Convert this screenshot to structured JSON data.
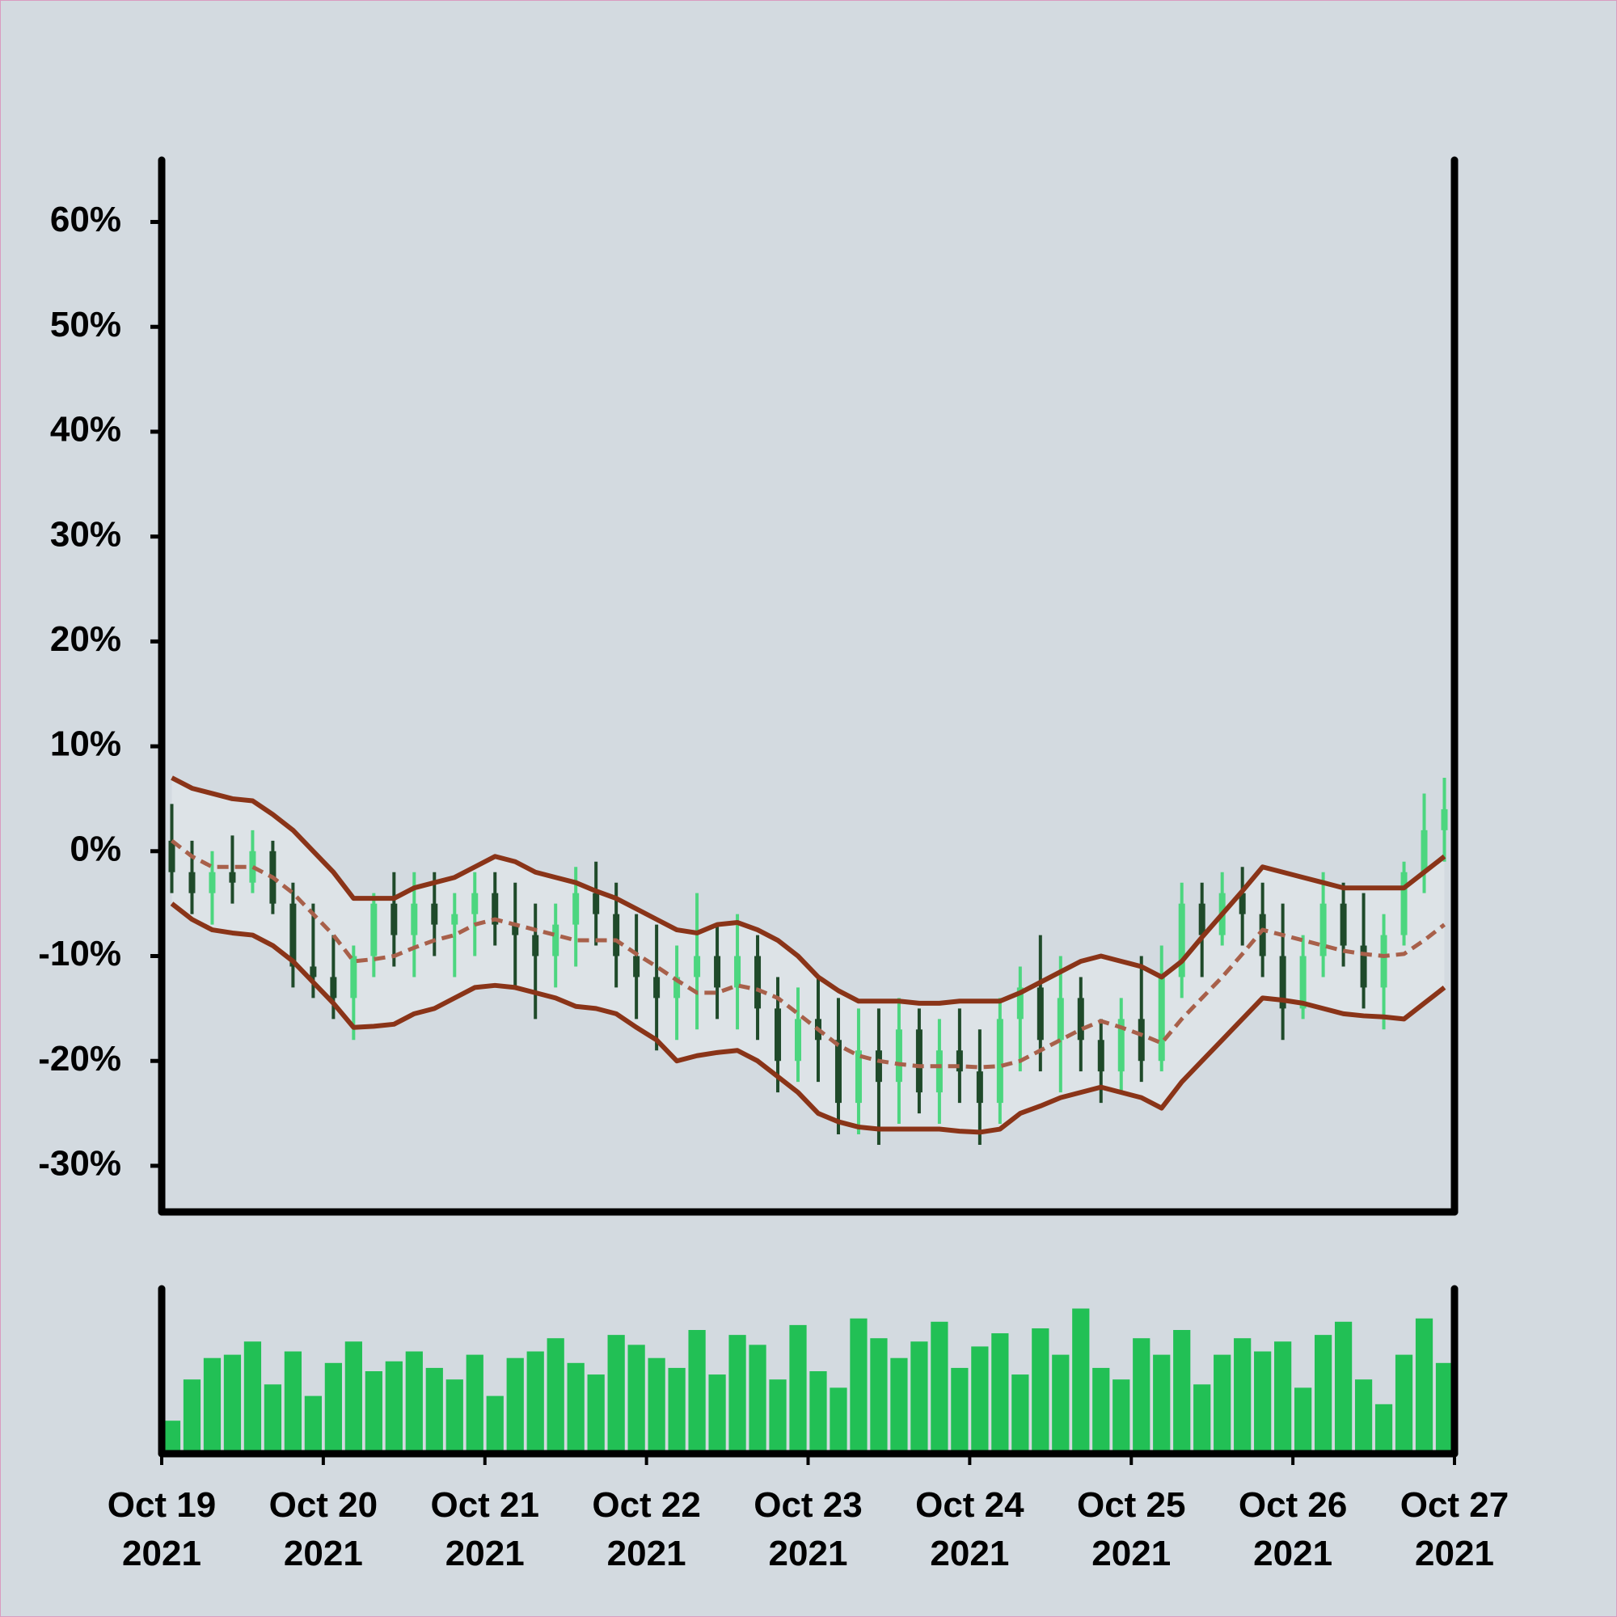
{
  "chart_data": [
    {
      "type": "ohlc",
      "x": [
        1.5,
        4.5,
        7.5,
        10.5,
        13.5,
        16.5,
        19.5,
        22.5,
        25.5,
        28.5,
        31.5,
        34.5,
        37.5,
        40.5,
        43.5,
        46.5,
        49.5,
        52.5,
        55.5,
        58.5,
        61.5,
        64.5,
        67.5,
        70.5,
        73.5,
        76.5,
        79.5,
        82.5,
        85.5,
        88.5,
        91.5,
        94.5,
        97.5,
        100.5,
        103.5,
        106.5,
        109.5,
        112.5,
        115.5,
        118.5,
        121.5,
        124.5,
        127.5,
        130.5,
        133.5,
        136.5,
        139.5,
        142.5,
        145.5,
        148.5,
        151.5,
        154.5,
        157.5,
        160.5,
        163.5,
        166.5,
        169.5,
        172.5,
        175.5,
        178.5,
        181.5,
        184.5,
        187.5,
        190.5
      ],
      "open": [
        1,
        -2,
        -4,
        -2,
        -3,
        0,
        -5,
        -11,
        -12,
        -14,
        -10,
        -5,
        -8,
        -5,
        -7,
        -6,
        -4,
        -7,
        -8,
        -10,
        -7,
        -4,
        -6,
        -10,
        -12,
        -14,
        -12,
        -10,
        -13,
        -10,
        -15,
        -20,
        -16,
        -18,
        -24,
        -19,
        -22,
        -17,
        -23,
        -19,
        -21,
        -24,
        -16,
        -13,
        -18,
        -14,
        -18,
        -21,
        -16,
        -20,
        -12,
        -5,
        -8,
        -4,
        -6,
        -10,
        -15,
        -10,
        -5,
        -9,
        -13,
        -8,
        -2,
        2
      ],
      "high": [
        4.5,
        1,
        0,
        1.5,
        2,
        1,
        -3,
        -5,
        -8,
        -9,
        -4,
        -2,
        -2,
        -2,
        -4,
        -2,
        -2,
        -3,
        -5,
        -5,
        -1.5,
        -1,
        -3,
        -6,
        -7,
        -9,
        -4,
        -7,
        -6,
        -8,
        -12,
        -13,
        -12,
        -14,
        -15,
        -15,
        -14,
        -15,
        -16,
        -15,
        -17,
        -14,
        -11,
        -8,
        -10,
        -12,
        -16,
        -14,
        -10,
        -9,
        -3,
        -3,
        -2,
        -1.5,
        -3,
        -5,
        -8,
        -2,
        -3,
        -4,
        -6,
        -1,
        5.5,
        7
      ],
      "low": [
        -4,
        -6,
        -7,
        -5,
        -4,
        -6,
        -13,
        -14,
        -16,
        -18,
        -12,
        -11,
        -12,
        -10,
        -12,
        -10,
        -9,
        -13,
        -16,
        -13,
        -11,
        -9,
        -13,
        -16,
        -19,
        -18,
        -17,
        -16,
        -17,
        -18,
        -23,
        -22,
        -22,
        -27,
        -27,
        -28,
        -26,
        -25,
        -26,
        -24,
        -28,
        -26,
        -21,
        -21,
        -23,
        -21,
        -24,
        -23,
        -22,
        -21,
        -14,
        -12,
        -9,
        -9,
        -12,
        -18,
        -16,
        -12,
        -11,
        -15,
        -17,
        -9,
        -4,
        -1
      ],
      "close": [
        -2,
        -4,
        -2,
        -3,
        0,
        -5,
        -11,
        -12,
        -14,
        -10,
        -5,
        -8,
        -5,
        -7,
        -6,
        -4,
        -7,
        -8,
        -10,
        -7,
        -4,
        -6,
        -10,
        -12,
        -14,
        -12,
        -10,
        -13,
        -10,
        -15,
        -20,
        -16,
        -18,
        -24,
        -19,
        -22,
        -17,
        -23,
        -19,
        -21,
        -24,
        -16,
        -13,
        -18,
        -14,
        -18,
        -21,
        -16,
        -20,
        -12,
        -5,
        -8,
        -4,
        -6,
        -10,
        -15,
        -10,
        -5,
        -9,
        -13,
        -8,
        -2,
        2,
        4
      ],
      "up_color": "#4cd67f",
      "down_color": "#1f4a2a",
      "bands": {
        "upper": [
          7,
          6,
          5.5,
          5,
          4.8,
          3.5,
          2,
          0,
          -2,
          -4.5,
          -4.5,
          -4.5,
          -3.5,
          -3,
          -2.5,
          -1.5,
          -0.5,
          -1,
          -2,
          -2.5,
          -3,
          -3.8,
          -4.5,
          -5.5,
          -6.5,
          -7.5,
          -7.8,
          -7,
          -6.8,
          -7.5,
          -8.5,
          -10,
          -12,
          -13.3,
          -14.3,
          -14.3,
          -14.3,
          -14.5,
          -14.5,
          -14.3,
          -14.3,
          -14.3,
          -13.5,
          -12.5,
          -11.5,
          -10.5,
          -10,
          -10.5,
          -11,
          -12,
          -10.5,
          -8.2,
          -6,
          -3.8,
          -1.5,
          -2,
          -2.5,
          -3,
          -3.5,
          -3.5,
          -3.5,
          -3.5,
          -2,
          -0.5
        ],
        "middle": [
          1,
          -0.5,
          -1.5,
          -1.5,
          -1.5,
          -2.5,
          -4,
          -6,
          -8,
          -10.5,
          -10.3,
          -10,
          -9.2,
          -8.5,
          -8,
          -7,
          -6.5,
          -7,
          -7.5,
          -8,
          -8.5,
          -8.5,
          -8.5,
          -9.8,
          -11,
          -12.3,
          -13.5,
          -13.5,
          -12.8,
          -13.2,
          -14,
          -15.5,
          -17,
          -18.5,
          -19.5,
          -20,
          -20.3,
          -20.5,
          -20.5,
          -20.5,
          -20.6,
          -20.5,
          -20,
          -19,
          -18,
          -17,
          -16.2,
          -16.8,
          -17.5,
          -18.3,
          -16,
          -14,
          -12,
          -9.8,
          -7.5,
          -8,
          -8.5,
          -9,
          -9.5,
          -9.8,
          -10,
          -9.8,
          -8.5,
          -7
        ],
        "lower": [
          -5,
          -6.5,
          -7.5,
          -7.8,
          -8,
          -9,
          -10.5,
          -12.5,
          -14.5,
          -16.8,
          -16.7,
          -16.5,
          -15.5,
          -15,
          -14,
          -13,
          -12.8,
          -13,
          -13.5,
          -14,
          -14.8,
          -15,
          -15.5,
          -16.8,
          -18,
          -20,
          -19.5,
          -19.2,
          -19,
          -20,
          -21.5,
          -23,
          -25,
          -25.8,
          -26.3,
          -26.5,
          -26.5,
          -26.5,
          -26.5,
          -26.7,
          -26.8,
          -26.5,
          -25,
          -24.3,
          -23.5,
          -23,
          -22.5,
          -23,
          -23.5,
          -24.5,
          -22,
          -20,
          -18,
          -16,
          -14,
          -14.2,
          -14.5,
          -15,
          -15.5,
          -15.7,
          -15.8,
          -16,
          -14.5,
          -13
        ],
        "color": "#8a3418",
        "middle_color": "#a8604a",
        "fill": "#dde3e7"
      },
      "xlim": [
        0,
        192
      ],
      "ylim": [
        -34.4,
        65.9
      ],
      "yticks": [
        {
          "value": -30,
          "label": "-30%"
        },
        {
          "value": -20,
          "label": "-20%"
        },
        {
          "value": -10,
          "label": "-10%"
        },
        {
          "value": 0,
          "label": "0%"
        },
        {
          "value": 10,
          "label": "10%"
        },
        {
          "value": 20,
          "label": "20%"
        },
        {
          "value": 30,
          "label": "30%"
        },
        {
          "value": 40,
          "label": "40%"
        },
        {
          "value": 50,
          "label": "50%"
        },
        {
          "value": 60,
          "label": "60%"
        }
      ]
    },
    {
      "type": "bar",
      "x": [
        1.5,
        4.5,
        7.5,
        10.5,
        13.5,
        16.5,
        19.5,
        22.5,
        25.5,
        28.5,
        31.5,
        34.5,
        37.5,
        40.5,
        43.5,
        46.5,
        49.5,
        52.5,
        55.5,
        58.5,
        61.5,
        64.5,
        67.5,
        70.5,
        73.5,
        76.5,
        79.5,
        82.5,
        85.5,
        88.5,
        91.5,
        94.5,
        97.5,
        100.5,
        103.5,
        106.5,
        109.5,
        112.5,
        115.5,
        118.5,
        121.5,
        124.5,
        127.5,
        130.5,
        133.5,
        136.5,
        139.5,
        142.5,
        145.5,
        148.5,
        151.5,
        154.5,
        157.5,
        160.5,
        163.5,
        166.5,
        169.5,
        172.5,
        175.5,
        178.5,
        181.5,
        184.5,
        187.5,
        190.5
      ],
      "values": [
        20,
        45,
        58,
        60,
        68,
        42,
        62,
        35,
        55,
        68,
        50,
        56,
        62,
        52,
        45,
        60,
        35,
        58,
        62,
        70,
        55,
        48,
        72,
        66,
        58,
        52,
        75,
        48,
        72,
        66,
        45,
        78,
        50,
        40,
        82,
        70,
        58,
        68,
        80,
        52,
        65,
        73,
        48,
        76,
        60,
        88,
        52,
        45,
        70,
        60,
        75,
        42,
        60,
        70,
        62,
        68,
        40,
        72,
        80,
        45,
        30,
        60,
        82,
        55
      ],
      "color": "#22c055",
      "xlim": [
        0,
        192
      ],
      "ylim": [
        0,
        100
      ],
      "xticks": [
        {
          "value": 0,
          "label": "Oct 19\n2021"
        },
        {
          "value": 24,
          "label": "Oct 20\n2021"
        },
        {
          "value": 48,
          "label": "Oct 21\n2021"
        },
        {
          "value": 72,
          "label": "Oct 22\n2021"
        },
        {
          "value": 96,
          "label": "Oct 23\n2021"
        },
        {
          "value": 120,
          "label": "Oct 24\n2021"
        },
        {
          "value": 144,
          "label": "Oct 25\n2021"
        },
        {
          "value": 168,
          "label": "Oct 26\n2021"
        },
        {
          "value": 192,
          "label": "Oct 27\n2021"
        }
      ]
    }
  ]
}
